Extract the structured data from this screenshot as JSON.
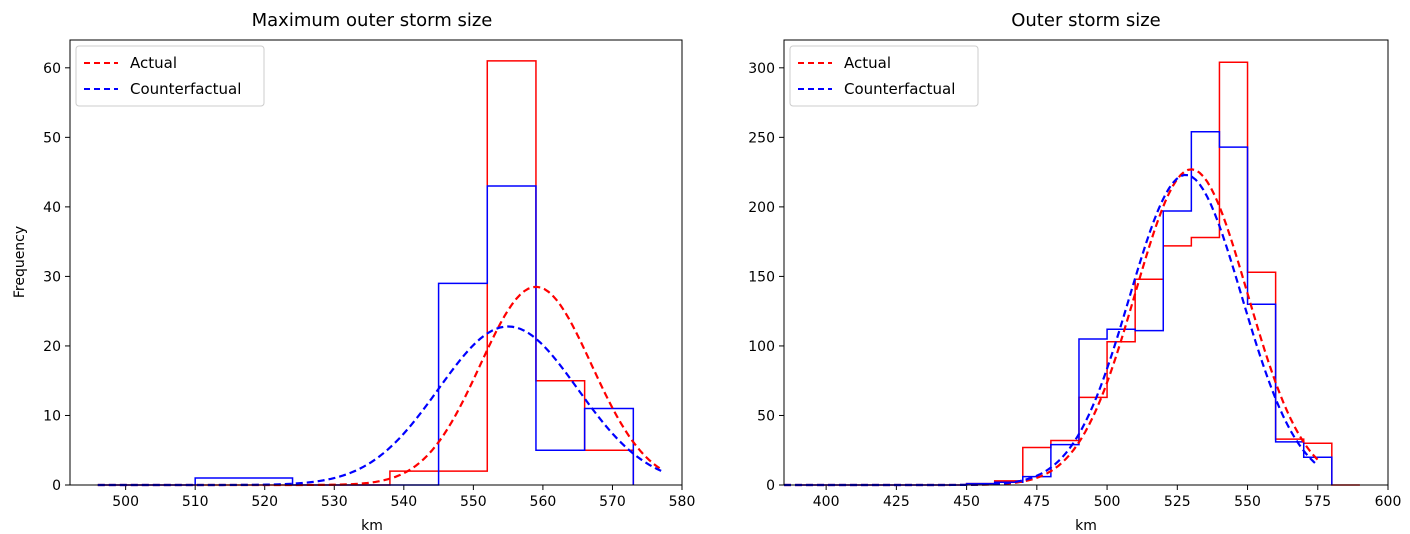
{
  "colors": {
    "actual": "#ff0000",
    "counterfactual": "#0000ff"
  },
  "chart_data": [
    {
      "type": "histogram",
      "title": "Maximum outer storm size",
      "xlabel": "km",
      "ylabel": "Frequency",
      "xlim": [
        492,
        580
      ],
      "ylim": [
        0,
        64
      ],
      "xticks": [
        500,
        510,
        520,
        530,
        540,
        550,
        560,
        570,
        580
      ],
      "yticks": [
        0,
        10,
        20,
        30,
        40,
        50,
        60
      ],
      "grid": false,
      "legend_position": "top-left",
      "series": [
        {
          "name": "Actual",
          "color": "#ff0000",
          "hist_edges": [
            496,
            503,
            510,
            517,
            524,
            531,
            538,
            545,
            552,
            559,
            566,
            573
          ],
          "hist_counts": [
            0,
            0,
            0,
            0,
            0,
            0,
            2,
            2,
            61,
            15,
            5
          ],
          "fit_curve": {
            "mean": 559,
            "std": 8.0,
            "peak": 28.5,
            "x_range": [
              496,
              577
            ]
          }
        },
        {
          "name": "Counterfactual",
          "color": "#0000ff",
          "hist_edges": [
            496,
            503,
            510,
            517,
            524,
            531,
            538,
            545,
            552,
            559,
            566,
            573
          ],
          "hist_counts": [
            0,
            0,
            1,
            1,
            0,
            0,
            0,
            29,
            43,
            5,
            11
          ],
          "fit_curve": {
            "mean": 555,
            "std": 10.0,
            "peak": 22.8,
            "x_range": [
              496,
              577
            ]
          }
        }
      ]
    },
    {
      "type": "histogram",
      "title": "Outer storm size",
      "xlabel": "km",
      "ylabel": "",
      "xlim": [
        385,
        600
      ],
      "ylim": [
        0,
        320
      ],
      "xticks": [
        400,
        425,
        450,
        475,
        500,
        525,
        550,
        575,
        600
      ],
      "yticks": [
        0,
        50,
        100,
        150,
        200,
        250,
        300
      ],
      "grid": false,
      "legend_position": "top-left",
      "series": [
        {
          "name": "Actual",
          "color": "#ff0000",
          "hist_edges": [
            390,
            400,
            410,
            420,
            430,
            440,
            450,
            460,
            470,
            480,
            490,
            500,
            510,
            520,
            530,
            540,
            550,
            560,
            570,
            580,
            590
          ],
          "hist_counts": [
            0,
            0,
            0,
            0,
            0,
            0,
            1,
            3,
            27,
            32,
            63,
            103,
            148,
            172,
            178,
            304,
            153,
            33,
            30,
            0
          ],
          "fit_curve": {
            "mean": 530,
            "std": 20.0,
            "peak": 227,
            "x_range": [
              385,
              575
            ]
          }
        },
        {
          "name": "Counterfactual",
          "color": "#0000ff",
          "hist_edges": [
            390,
            400,
            410,
            420,
            430,
            440,
            450,
            460,
            470,
            480,
            490,
            500,
            510,
            520,
            530,
            540,
            550,
            560,
            570,
            580
          ],
          "hist_counts": [
            0,
            0,
            0,
            0,
            0,
            0,
            1,
            2,
            6,
            29,
            105,
            112,
            111,
            197,
            254,
            243,
            130,
            31,
            20
          ],
          "fit_curve": {
            "mean": 528,
            "std": 20.0,
            "peak": 223,
            "x_range": [
              385,
              575
            ]
          }
        }
      ]
    }
  ]
}
